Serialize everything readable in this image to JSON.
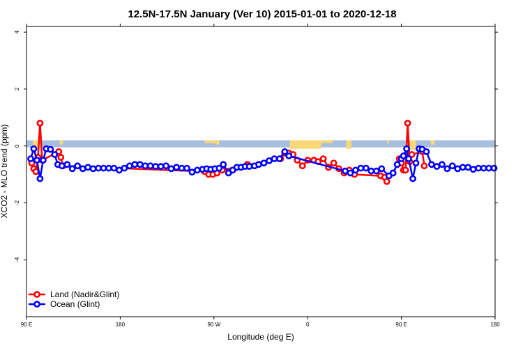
{
  "chart_data": {
    "type": "line",
    "title": "12.5N-17.5N January (Ver 10)   2015-01-01 to 2020-12-18",
    "xlabel": "Longitude (deg E)",
    "ylabel": "XCO2 - MLO trend (ppm)",
    "xlim": [
      90,
      540
    ],
    "ylim": [
      -6,
      4.2
    ],
    "x_ticks": [
      {
        "value": 90,
        "label": "90 E"
      },
      {
        "value": 180,
        "label": "180"
      },
      {
        "value": 270,
        "label": "90 W"
      },
      {
        "value": 360,
        "label": "0"
      },
      {
        "value": 450,
        "label": "90 E"
      },
      {
        "value": 540,
        "label": "180"
      }
    ],
    "y_ticks": [
      {
        "value": 4,
        "label": "4"
      },
      {
        "value": 2,
        "label": "2"
      },
      {
        "value": 0,
        "label": "0"
      },
      {
        "value": -2,
        "label": "-2"
      },
      {
        "value": -4,
        "label": "-4"
      }
    ],
    "legend": {
      "position": "bottom-left",
      "entries": [
        {
          "label": "Land (Nadir&Glint)",
          "color": "#ff0000"
        },
        {
          "label": "Ocean (Glint)",
          "color": "#0000ff"
        }
      ]
    },
    "background_band": {
      "y_min": -0.05,
      "y_max": 0.2,
      "color": "#a8bede"
    },
    "land_mask_color": "#f8d878",
    "land_mask": [
      {
        "x_start": 96,
        "x_end": 103,
        "depth": 0.35
      },
      {
        "x_start": 122,
        "x_end": 125,
        "depth": 0.15
      },
      {
        "x_start": 261,
        "x_end": 271,
        "depth": 0.1
      },
      {
        "x_start": 271,
        "x_end": 275,
        "depth": 0.15
      },
      {
        "x_start": 343,
        "x_end": 373,
        "depth": 0.3
      },
      {
        "x_start": 373,
        "x_end": 384,
        "depth": 0.1
      },
      {
        "x_start": 397,
        "x_end": 402,
        "depth": 0.3
      },
      {
        "x_start": 436,
        "x_end": 438,
        "depth": 0.1
      },
      {
        "x_start": 458,
        "x_end": 464,
        "depth": 0.35
      },
      {
        "x_start": 478,
        "x_end": 482,
        "depth": 0.15
      }
    ],
    "series": [
      {
        "name": "Land (Nadir&Glint)",
        "color": "#ff0000",
        "x": [
          95,
          97,
          99,
          101,
          103,
          105,
          121,
          123,
          125,
          261,
          265,
          269,
          273,
          278,
          302,
          304,
          334,
          338,
          342,
          346,
          350,
          355,
          360,
          366,
          370,
          375,
          380,
          385,
          390,
          395,
          400,
          405,
          430,
          434,
          436,
          438,
          442,
          446,
          448,
          450,
          452,
          454,
          456,
          458,
          460,
          470,
          472
        ],
        "y": [
          -0.6,
          -0.8,
          -0.9,
          -0.4,
          0.8,
          -0.5,
          -0.2,
          -0.4,
          -0.7,
          -0.9,
          -1.0,
          -1.0,
          -0.95,
          -0.85,
          -0.65,
          -0.7,
          -0.45,
          -0.25,
          -0.25,
          -0.3,
          -0.5,
          -0.7,
          -0.5,
          -0.5,
          -0.55,
          -0.45,
          -0.75,
          -0.6,
          -0.8,
          -0.95,
          -0.85,
          -1.0,
          -1.05,
          -1.1,
          -1.25,
          -1.05,
          -0.95,
          -0.65,
          -0.45,
          -0.6,
          -0.85,
          -0.85,
          0.8,
          -0.55,
          -0.3,
          -0.2,
          -0.7
        ]
      },
      {
        "name": "Ocean (Glint)",
        "color": "#0000ff",
        "x": [
          94,
          97,
          100,
          103,
          106,
          109,
          113,
          117,
          120,
          124,
          129,
          134,
          139,
          144,
          149,
          154,
          159,
          164,
          169,
          174,
          179,
          184,
          189,
          194,
          199,
          204,
          209,
          214,
          219,
          224,
          229,
          234,
          239,
          244,
          249,
          254,
          259,
          263,
          267,
          271,
          275,
          279,
          284,
          288,
          292,
          296,
          300,
          304,
          309,
          313,
          318,
          323,
          328,
          333,
          338,
          342,
          396,
          401,
          406,
          411,
          416,
          421,
          426,
          431,
          438,
          442,
          446,
          450,
          452,
          455,
          457,
          461,
          464,
          467,
          470,
          474,
          479,
          484,
          489,
          494,
          499,
          504,
          509,
          514,
          519,
          524,
          529,
          534,
          539
        ],
        "y": [
          -0.45,
          -0.1,
          -0.5,
          -1.15,
          -0.5,
          -0.1,
          -0.12,
          -0.3,
          -0.65,
          -0.7,
          -0.65,
          -0.8,
          -0.7,
          -0.8,
          -0.75,
          -0.8,
          -0.78,
          -0.78,
          -0.78,
          -0.78,
          -0.85,
          -0.78,
          -0.7,
          -0.65,
          -0.65,
          -0.7,
          -0.7,
          -0.72,
          -0.72,
          -0.7,
          -0.8,
          -0.75,
          -0.78,
          -0.78,
          -0.92,
          -0.85,
          -0.82,
          -0.8,
          -0.82,
          -0.8,
          -0.78,
          -0.65,
          -0.95,
          -0.85,
          -0.75,
          -0.75,
          -0.72,
          -0.72,
          -0.7,
          -0.65,
          -0.6,
          -0.52,
          -0.45,
          -0.45,
          -0.2,
          -0.35,
          -0.88,
          -0.95,
          -0.85,
          -0.78,
          -0.78,
          -0.88,
          -0.88,
          -0.8,
          -1.05,
          -0.95,
          -0.65,
          -0.45,
          -0.35,
          -0.1,
          -0.45,
          -1.15,
          -0.6,
          -0.1,
          -0.12,
          -0.2,
          -0.65,
          -0.72,
          -0.65,
          -0.8,
          -0.7,
          -0.8,
          -0.75,
          -0.75,
          -0.82,
          -0.78,
          -0.78,
          -0.78,
          -0.78
        ]
      }
    ]
  }
}
